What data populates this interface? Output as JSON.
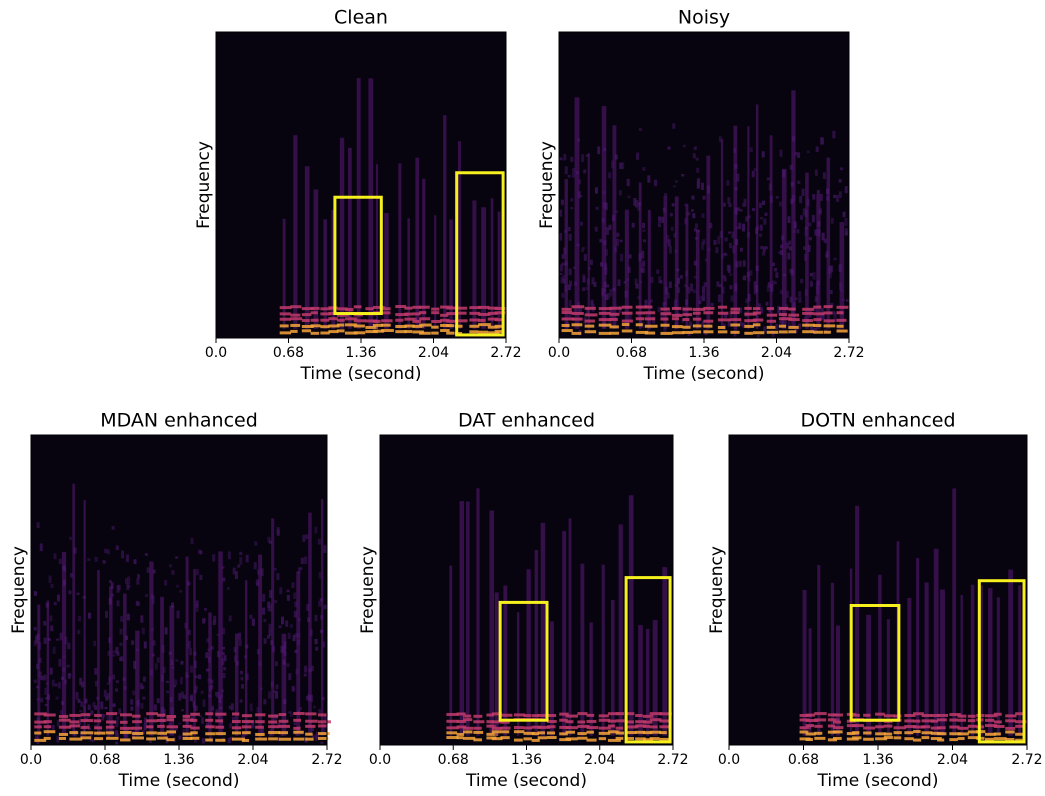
{
  "chart_data": [
    {
      "type": "spectrogram",
      "title": "Clean",
      "xlabel": "Time (second)",
      "ylabel": "Frequency",
      "xlim": [
        0,
        2.72
      ],
      "xticks": [
        {
          "value": 0,
          "label": "0.0"
        },
        0.68,
        1.36,
        2.04,
        2.72
      ]
    },
    {
      "type": "spectrogram",
      "title": "Noisy",
      "xlabel": "Time (second)",
      "ylabel": "Frequency",
      "xlim": [
        0,
        2.72
      ],
      "xticks": [
        {
          "value": 0,
          "label": "0.0"
        },
        0.68,
        1.36,
        2.04,
        2.72
      ]
    },
    {
      "type": "spectrogram",
      "title": "MDAN enhanced",
      "xlabel": "Time (second)",
      "ylabel": "Frequency",
      "xlim": [
        0,
        2.72
      ],
      "xticks": [
        {
          "value": 0,
          "label": "0.0"
        },
        0.68,
        1.36,
        2.04,
        2.72
      ]
    },
    {
      "type": "spectrogram",
      "title": "DAT enhanced",
      "xlabel": "Time (second)",
      "ylabel": "Frequency",
      "xlim": [
        0,
        2.72
      ],
      "xticks": [
        {
          "value": 0,
          "label": "0.0"
        },
        0.68,
        1.36,
        2.04,
        2.72
      ]
    },
    {
      "type": "spectrogram",
      "title": "DOTN enhanced",
      "xlabel": "Time (second)",
      "ylabel": "Frequency",
      "xlim": [
        0,
        2.72
      ],
      "xticks": [
        {
          "value": 0,
          "label": "0.0"
        },
        0.68,
        1.36,
        2.04,
        2.72
      ]
    }
  ]
}
